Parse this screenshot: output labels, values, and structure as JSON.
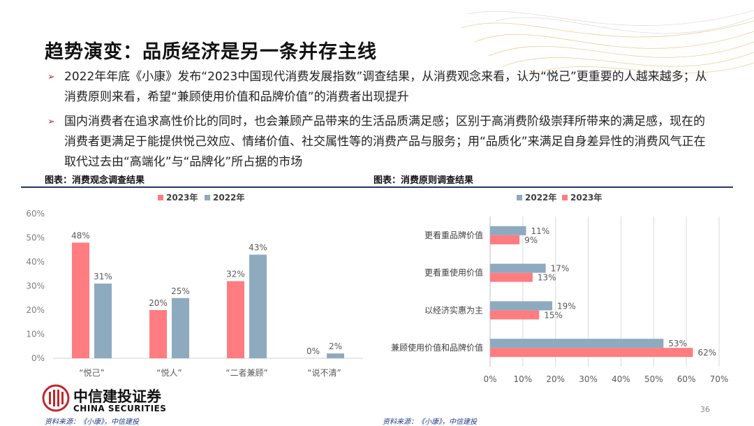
{
  "title": "趋势演变：品质经济是另一条并存主线",
  "bullets": [
    "2022年年底《小康》发布“2023中国现代消费发展指数”调查结果，从消费观念来看，认为“悦己”更重要的人越来越多；从消费原则来看，希望“兼顾使用价值和品牌价值”的消费者出现提升",
    "国内消费者在追求高性价比的同时，也会兼顾产品带来的生活品质满足感；区别于高消费阶级崇拜所带来的满足感，现在的消费者更满足于能提供悦己效应、情绪价值、社交属性等的消费产品与服务；用“品质化”来满足自身差异性的消费风气正在取代过去由“高端化”与“品牌化”所占据的市场"
  ],
  "captions": {
    "left": "图表：消费观念调查结果",
    "right": "图表：消费原则调查结果"
  },
  "sources": {
    "left": "资料来源：《小康》，中信建投",
    "right": "资料来源：《小康》，中信建投"
  },
  "logo": {
    "cn": "中信建投证券",
    "en": "CHINA SECURITIES"
  },
  "page_number": "36",
  "colors": {
    "red": "#ff7c80",
    "blue": "#8eaabf",
    "accent": "#c0272d",
    "rule": "#1f3864"
  },
  "chart_data": [
    {
      "type": "bar",
      "categories": [
        "“悦己”",
        "“悦人”",
        "“二者兼顾”",
        "“说不清”"
      ],
      "series": [
        {
          "name": "2023年",
          "values": [
            48,
            20,
            32,
            0
          ],
          "labels": [
            "48%",
            "20%",
            "32%",
            "0%"
          ],
          "color": "#ff7c80"
        },
        {
          "name": "2022年",
          "values": [
            31,
            25,
            43,
            2
          ],
          "labels": [
            "31%",
            "25%",
            "43%",
            "2%"
          ],
          "color": "#8eaabf"
        }
      ],
      "ylim": [
        0,
        60
      ],
      "yticks": [
        "0%",
        "10%",
        "20%",
        "30%",
        "40%",
        "50%",
        "60%"
      ],
      "grid": false,
      "legend": "top"
    },
    {
      "type": "bar",
      "orientation": "horizontal",
      "categories": [
        "更看重品牌价值",
        "更看重使用价值",
        "以经济实惠为主",
        "兼顾使用价值和品牌价值"
      ],
      "series": [
        {
          "name": "2022年",
          "values": [
            11,
            17,
            19,
            53
          ],
          "labels": [
            "11%",
            "17%",
            "19%",
            "53%"
          ],
          "color": "#8eaabf"
        },
        {
          "name": "2023年",
          "values": [
            9,
            13,
            15,
            62
          ],
          "labels": [
            "9%",
            "13%",
            "15%",
            "62%"
          ],
          "color": "#ff7c80"
        }
      ],
      "xlim": [
        0,
        70
      ],
      "xticks": [
        "0%",
        "10%",
        "20%",
        "30%",
        "40%",
        "50%",
        "60%",
        "70%"
      ],
      "grid": true,
      "legend": "top"
    }
  ]
}
